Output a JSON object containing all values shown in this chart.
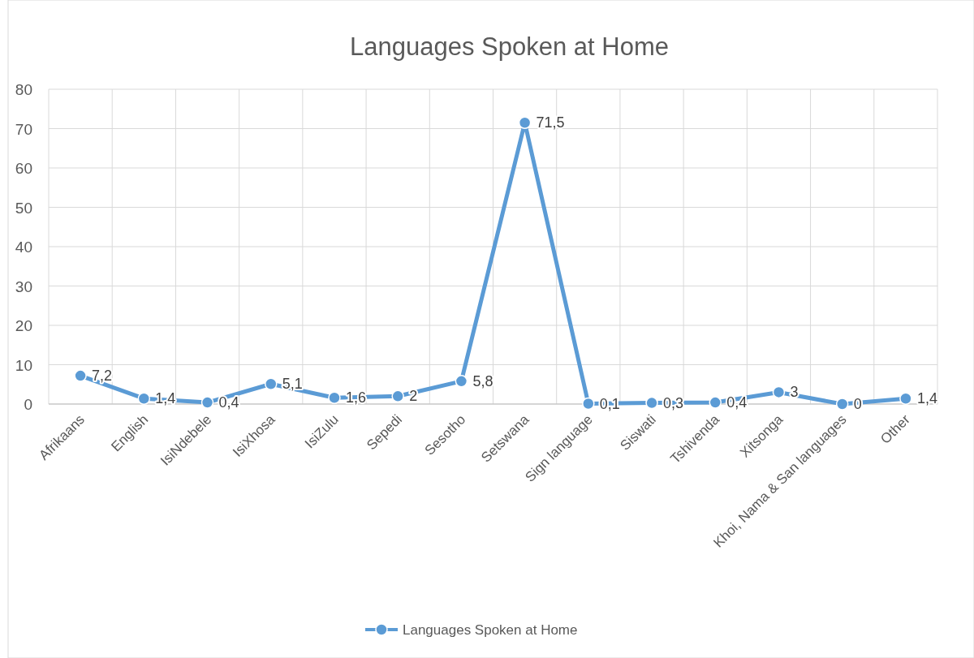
{
  "chart_data": {
    "type": "line",
    "title": "Languages Spoken at Home",
    "categories": [
      "Afrikaans",
      "English",
      "IsiNdebele",
      "IsiXhosa",
      "IsiZulu",
      "Sepedi",
      "Sesotho",
      "Setswana",
      "Sign language",
      "Siswati",
      "Tshivenda",
      "Xitsonga",
      "Khoi, Nama & San languages",
      "Other"
    ],
    "series": [
      {
        "name": "Languages Spoken at Home",
        "color": "#5b9bd5",
        "values": [
          7.2,
          1.4,
          0.4,
          5.1,
          1.6,
          2,
          5.8,
          71.5,
          0.1,
          0.3,
          0.4,
          3,
          0,
          1.4
        ],
        "value_labels": [
          "7,2",
          "1,4",
          "0,4",
          "5,1",
          "1,6",
          "2",
          "5,8",
          "71,5",
          "0,1",
          "0,3",
          "0,4",
          "3",
          "0",
          "1,4"
        ]
      }
    ],
    "ylim": [
      0,
      80
    ],
    "yticks": [
      0,
      10,
      20,
      30,
      40,
      50,
      60,
      70,
      80
    ],
    "grid": true,
    "legend": "bottom",
    "marker": "circle",
    "line_style": "solid"
  }
}
